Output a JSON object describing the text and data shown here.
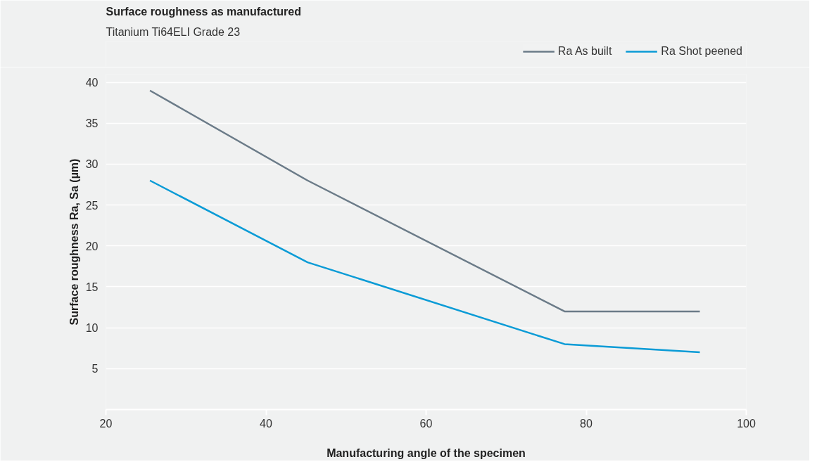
{
  "chart_data": {
    "type": "line",
    "title": "Surface roughness as manufactured",
    "subtitle": "Titanium Ti64ELI Grade 23",
    "xlabel": "Manufacturing angle of the specimen",
    "ylabel": "Surface roughness Ra, Sa (µm)",
    "x": [
      25.5,
      45.2,
      77.3,
      94.2
    ],
    "series": [
      {
        "name": "Ra As built",
        "color": "#6b7b88",
        "values": [
          39,
          28,
          12,
          12
        ]
      },
      {
        "name": "Ra Shot peened",
        "color": "#0a9bd6",
        "values": [
          28,
          18,
          8,
          7
        ]
      }
    ],
    "xlim": [
      20,
      100
    ],
    "xticks": [
      20,
      40,
      60,
      80,
      100
    ],
    "ylim": [
      0,
      41
    ],
    "yticks": [
      5,
      10,
      15,
      20,
      25,
      30,
      35,
      40
    ],
    "grid": "y",
    "legend": "top right",
    "marker": "none",
    "line_style": "solid"
  }
}
